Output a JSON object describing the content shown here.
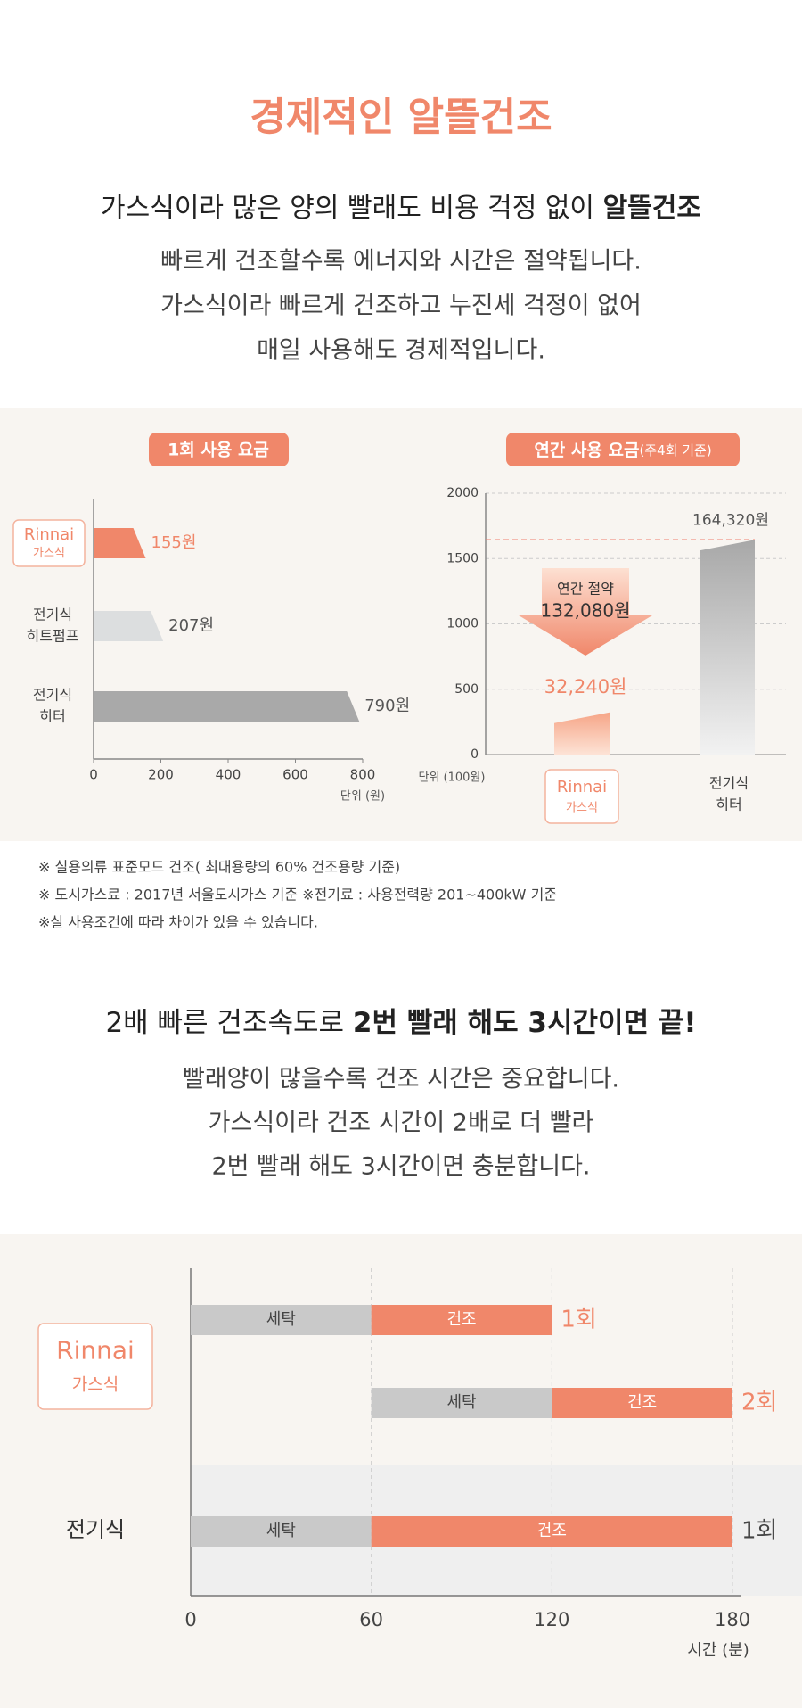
{
  "header": {
    "title": "경제적인 알뜰건조",
    "subtitle": [
      "가스식이라 많은 양의 빨래도 비용 걱정 없이 ",
      "알뜰건조"
    ],
    "lines": [
      "빠르게 건조할수록 에너지와 시간은 절약됩니다.",
      "가스식이라 빠르게 건조하고 누진세 걱정이 없어",
      "매일 사용해도 경제적입니다."
    ]
  },
  "chart_data": [
    {
      "type": "hbar",
      "title": "1회 사용 요금",
      "categories": [
        [
          "Rinnai",
          "가스식"
        ],
        [
          "전기식",
          "히트펌프"
        ],
        [
          "전기식",
          "히터"
        ]
      ],
      "values": [
        155,
        207,
        790
      ],
      "value_labels": [
        "155원",
        "207원",
        "790원"
      ],
      "colors": [
        "#f0876a",
        "#dcdedf",
        "#a9a9a9"
      ],
      "xlim": [
        0,
        800
      ],
      "xticks": [
        0,
        200,
        400,
        600,
        800
      ],
      "xlabel": "단위 (원)"
    },
    {
      "type": "vbar",
      "title": "연간 사용 요금",
      "title_note": "(주4회 기준)",
      "categories": [
        [
          "Rinnai",
          "가스식"
        ],
        [
          "전기식",
          "히터"
        ]
      ],
      "values": [
        322.4,
        1643.2
      ],
      "value_labels": [
        "32,240원",
        "164,320원"
      ],
      "colors": [
        "#f0876a",
        "#b0b0b0"
      ],
      "ylim": [
        0,
        2000
      ],
      "yticks": [
        0,
        500,
        1000,
        1500,
        2000
      ],
      "ylabel": "단위 (100원)",
      "annotation": {
        "title": "연간 절약",
        "value": "132,080원"
      },
      "grid": true
    },
    {
      "type": "gantt",
      "groups": [
        {
          "name": [
            "Rinnai",
            "가스식"
          ],
          "rows": [
            {
              "label": "1회",
              "label_color": "#f0876a",
              "segments": [
                {
                  "name": "세탁",
                  "start": 0,
                  "end": 60,
                  "color": "#c9c9c9"
                },
                {
                  "name": "건조",
                  "start": 60,
                  "end": 120,
                  "color": "#f0876a"
                }
              ]
            },
            {
              "label": "2회",
              "label_color": "#f0876a",
              "segments": [
                {
                  "name": "세탁",
                  "start": 60,
                  "end": 120,
                  "color": "#c9c9c9"
                },
                {
                  "name": "건조",
                  "start": 120,
                  "end": 180,
                  "color": "#f0876a"
                }
              ]
            }
          ]
        },
        {
          "name": [
            "전기식"
          ],
          "rows": [
            {
              "label": "1회",
              "label_color": "#444444",
              "segments": [
                {
                  "name": "세탁",
                  "start": 0,
                  "end": 60,
                  "color": "#c9c9c9"
                },
                {
                  "name": "건조",
                  "start": 60,
                  "end": 180,
                  "color": "#f0876a"
                }
              ]
            }
          ]
        }
      ],
      "xlim": [
        0,
        180
      ],
      "xticks": [
        0,
        60,
        120,
        180
      ],
      "xlabel": "시간 (분)"
    }
  ],
  "notes": [
    "※ 실용의류 표준모드 건조( 최대용량의 60% 건조용량 기준)",
    "※ 도시가스료 : 2017년 서울도시가스 기준   ※전기료 : 사용전력량 201~400kW 기준",
    "※실 사용조건에 따라 차이가 있을 수 있습니다."
  ],
  "section2": {
    "title": [
      "2배 빠른 건조속도로 ",
      "2번 빨래 해도 3시간이면 끝!"
    ],
    "lines": [
      "빨래양이 많을수록 건조 시간은 중요합니다.",
      "가스식이라 건조 시간이 2배로 더 빨라",
      "2번 빨래 해도 3시간이면 충분합니다."
    ]
  }
}
